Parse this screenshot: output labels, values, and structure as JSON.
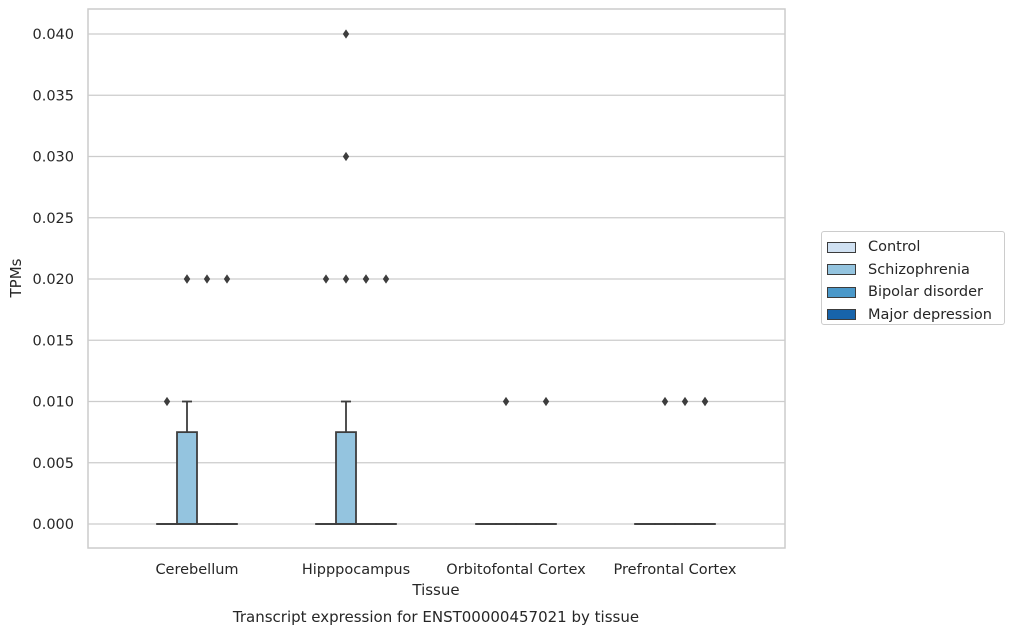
{
  "chart_data": {
    "type": "boxplot",
    "title": "Transcript expression for ENST00000457021 by tissue",
    "xlabel": "Tissue",
    "ylabel": "TPMs",
    "ylim": [
      -0.002,
      0.042
    ],
    "yticks": [
      "0.000",
      "0.005",
      "0.010",
      "0.015",
      "0.020",
      "0.025",
      "0.030",
      "0.035",
      "0.040"
    ],
    "grid": "horizontal",
    "legend_placement": "right",
    "categories": [
      "Cerebellum",
      "Hipppocampus",
      "Orbitofontal Cortex",
      "Prefrontal Cortex"
    ],
    "series": [
      {
        "name": "Control",
        "color": "#d0e1f2",
        "boxes": [
          {
            "q1": 0,
            "median": 0,
            "q3": 0,
            "whisker_low": 0,
            "whisker_high": 0,
            "outliers": [
              0.01
            ]
          },
          {
            "q1": 0,
            "median": 0,
            "q3": 0,
            "whisker_low": 0,
            "whisker_high": 0,
            "outliers": [
              0.02
            ]
          },
          {
            "q1": 0,
            "median": 0,
            "q3": 0,
            "whisker_low": 0,
            "whisker_high": 0,
            "outliers": []
          },
          {
            "q1": 0,
            "median": 0,
            "q3": 0,
            "whisker_low": 0,
            "whisker_high": 0,
            "outliers": []
          }
        ]
      },
      {
        "name": "Schizophrenia",
        "color": "#94c4df",
        "boxes": [
          {
            "q1": 0,
            "median": 0,
            "q3": 0.0075,
            "whisker_low": 0,
            "whisker_high": 0.01,
            "outliers": [
              0.02,
              0.02
            ]
          },
          {
            "q1": 0,
            "median": 0,
            "q3": 0.0075,
            "whisker_low": 0,
            "whisker_high": 0.01,
            "outliers": [
              0.02,
              0.03,
              0.04
            ]
          },
          {
            "q1": 0,
            "median": 0,
            "q3": 0,
            "whisker_low": 0,
            "whisker_high": 0,
            "outliers": [
              0.01
            ]
          },
          {
            "q1": 0,
            "median": 0,
            "q3": 0,
            "whisker_low": 0,
            "whisker_high": 0,
            "outliers": [
              0.01
            ]
          }
        ]
      },
      {
        "name": "Bipolar disorder",
        "color": "#4a98c9",
        "boxes": [
          {
            "q1": 0,
            "median": 0,
            "q3": 0,
            "whisker_low": 0,
            "whisker_high": 0,
            "outliers": [
              0.02
            ]
          },
          {
            "q1": 0,
            "median": 0,
            "q3": 0,
            "whisker_low": 0,
            "whisker_high": 0,
            "outliers": [
              0.02,
              0.02
            ]
          },
          {
            "q1": 0,
            "median": 0,
            "q3": 0,
            "whisker_low": 0,
            "whisker_high": 0,
            "outliers": []
          },
          {
            "q1": 0,
            "median": 0,
            "q3": 0,
            "whisker_low": 0,
            "whisker_high": 0,
            "outliers": [
              0.01
            ]
          }
        ]
      },
      {
        "name": "Major depression",
        "color": "#1764ab",
        "boxes": [
          {
            "q1": 0,
            "median": 0,
            "q3": 0,
            "whisker_low": 0,
            "whisker_high": 0,
            "outliers": [
              0.02
            ]
          },
          {
            "q1": 0,
            "median": 0,
            "q3": 0,
            "whisker_low": 0,
            "whisker_high": 0,
            "outliers": [
              0.02
            ]
          },
          {
            "q1": 0,
            "median": 0,
            "q3": 0,
            "whisker_low": 0,
            "whisker_high": 0,
            "outliers": [
              0.01
            ]
          },
          {
            "q1": 0,
            "median": 0,
            "q3": 0,
            "whisker_low": 0,
            "whisker_high": 0,
            "outliers": [
              0.01,
              0.01
            ]
          }
        ]
      }
    ]
  }
}
